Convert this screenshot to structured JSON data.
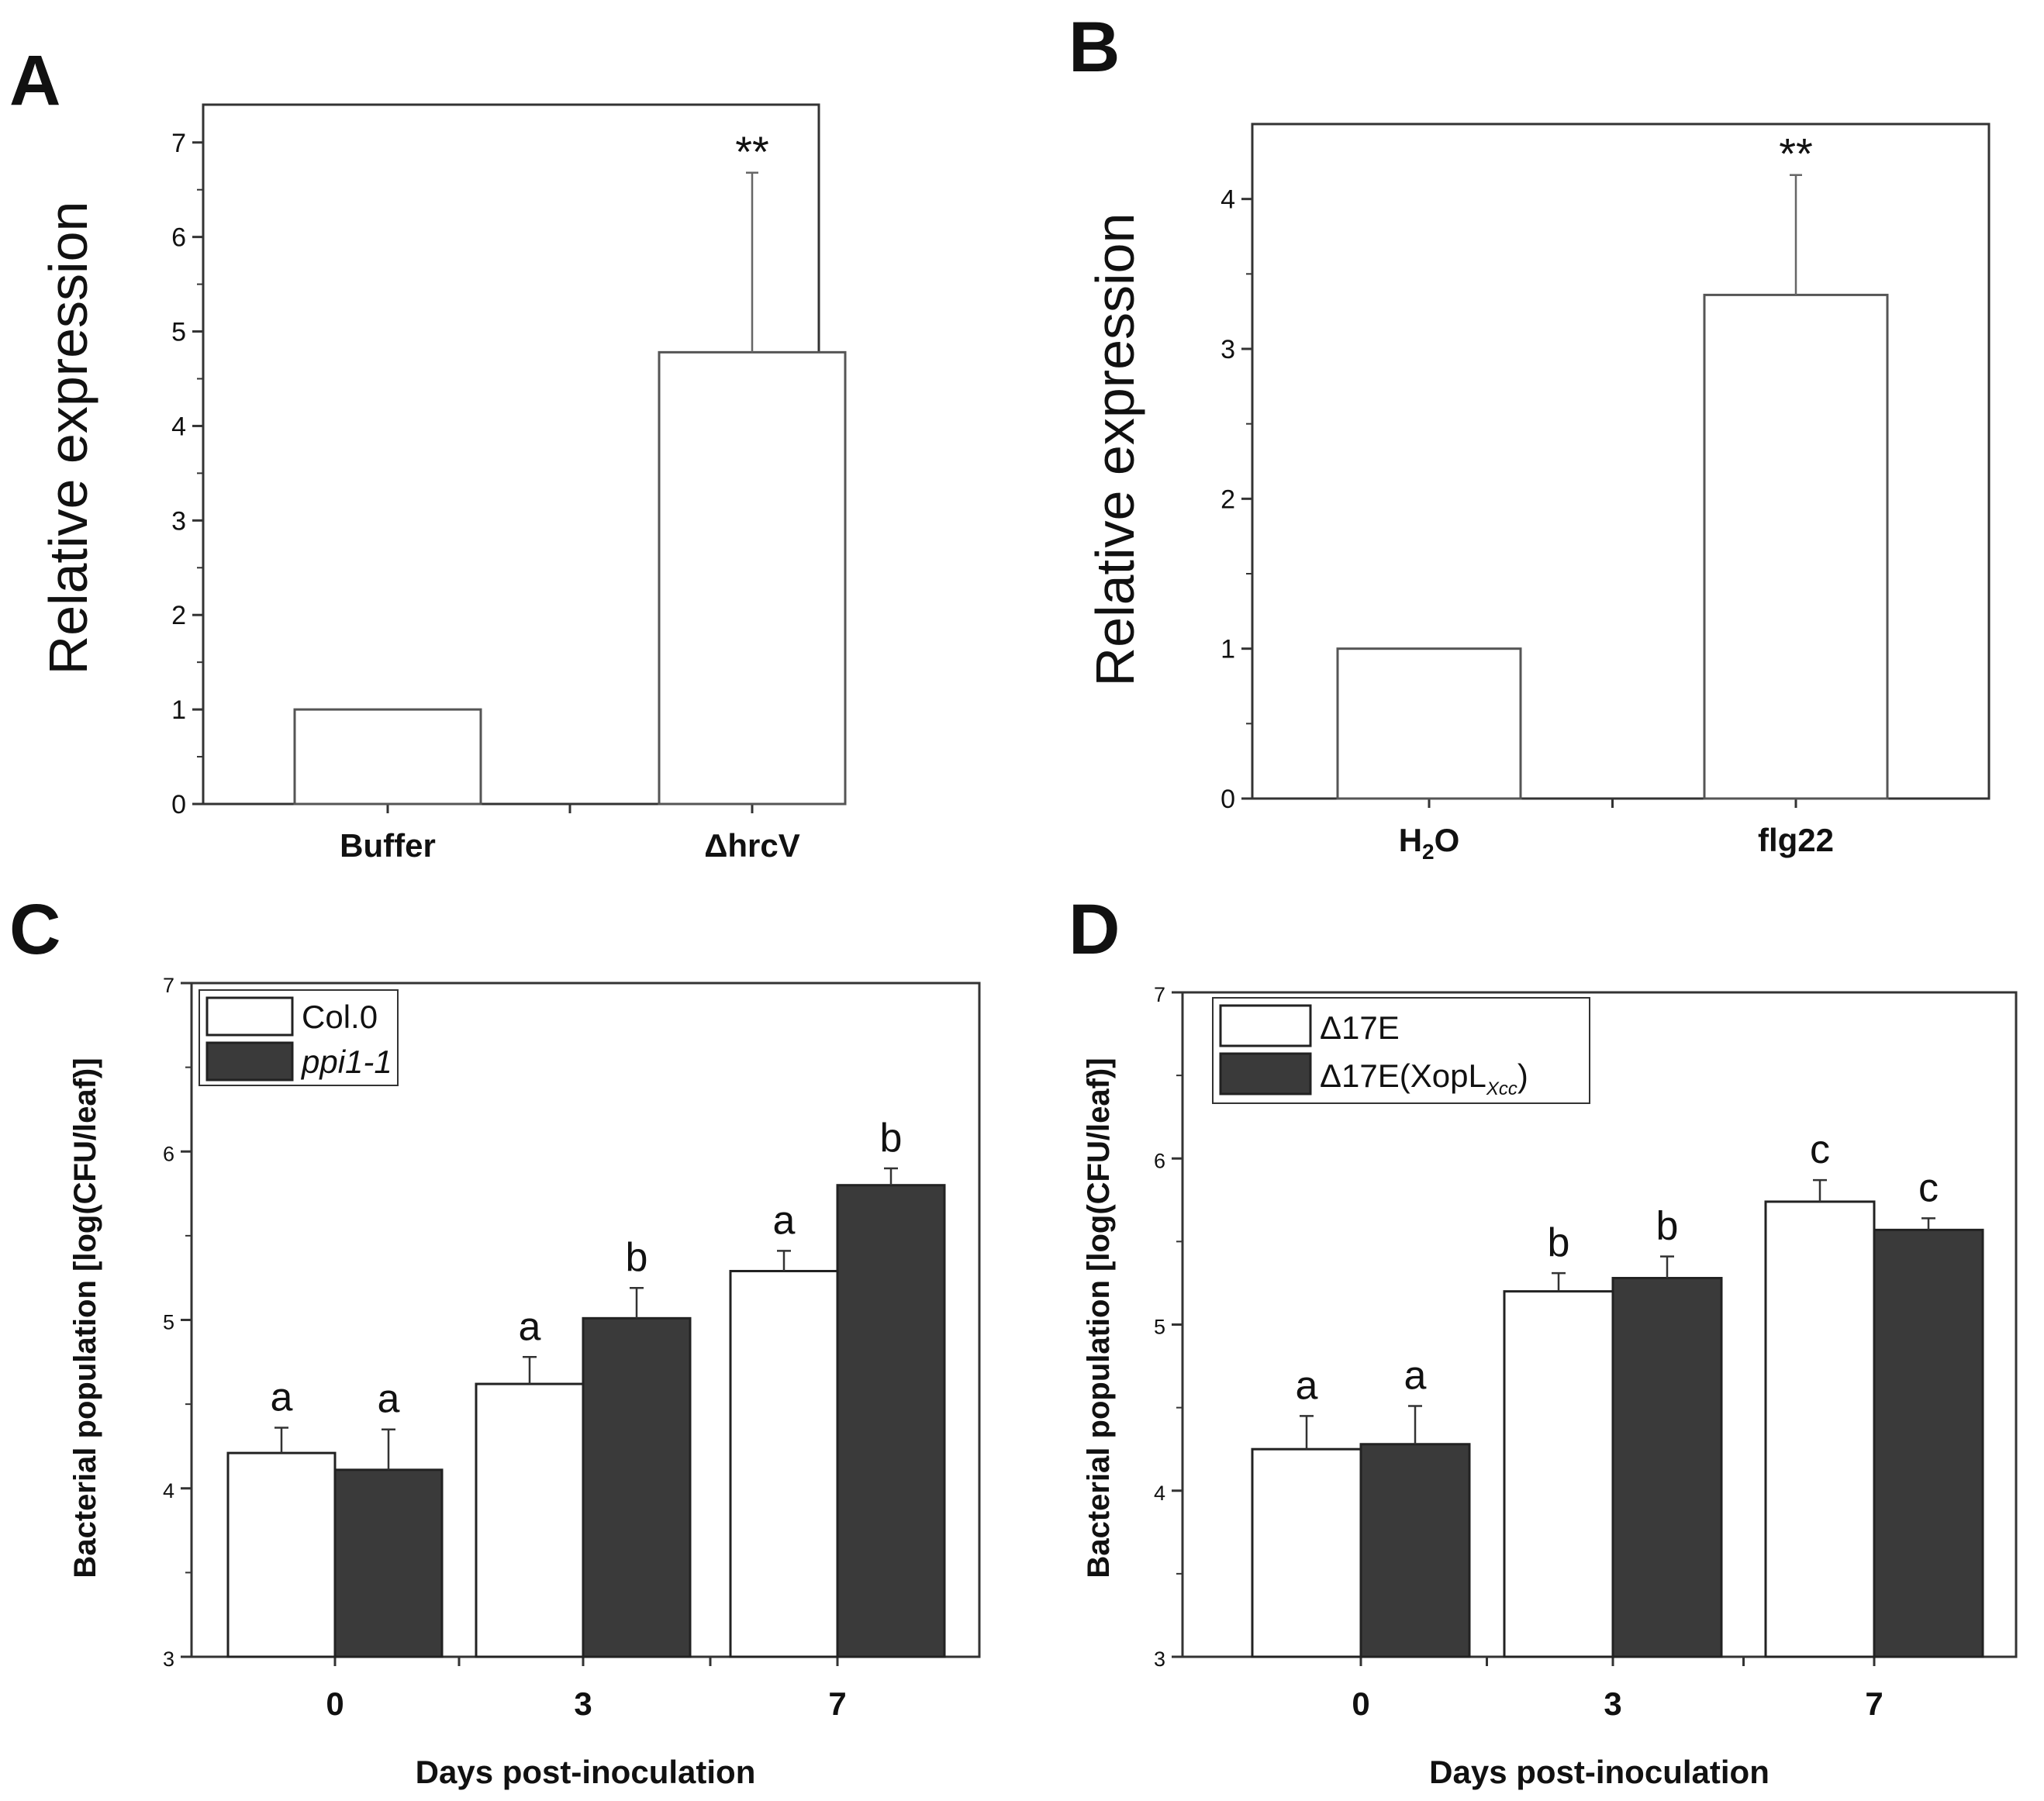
{
  "chart_data": [
    {
      "id": "A",
      "panel_label": "A",
      "type": "bar",
      "categories": [
        "Buffer",
        "ΔhrcV"
      ],
      "values": [
        1.0,
        4.78
      ],
      "errors": [
        0,
        1.9
      ],
      "significance": [
        "",
        "**"
      ],
      "ylabel": "Relative expression",
      "xlabel": "",
      "ylim": [
        0,
        7.4
      ],
      "yticks": [
        0,
        1,
        2,
        3,
        4,
        5,
        6,
        7
      ],
      "bar_color": "#ffffff",
      "grid": false
    },
    {
      "id": "B",
      "panel_label": "B",
      "type": "bar",
      "categories": [
        "H",
        "flg22"
      ],
      "category_subscripts": [
        "2",
        ""
      ],
      "category_suffixes": [
        "O",
        ""
      ],
      "values": [
        1.0,
        3.36
      ],
      "errors": [
        0,
        0.8
      ],
      "significance": [
        "",
        "**"
      ],
      "ylabel": "Relative expression",
      "xlabel": "",
      "ylim": [
        0,
        4.5
      ],
      "yticks": [
        0,
        1,
        2,
        3,
        4
      ],
      "bar_color": "#ffffff",
      "grid": false
    },
    {
      "id": "C",
      "panel_label": "C",
      "type": "bar",
      "categories": [
        "0",
        "3",
        "7"
      ],
      "series": [
        {
          "name": "Col.0",
          "values": [
            4.21,
            4.62,
            5.29
          ],
          "errors": [
            0.15,
            0.16,
            0.12
          ],
          "letters": [
            "a",
            "a",
            "a"
          ],
          "color": "#ffffff"
        },
        {
          "name": "ppi1-1",
          "values": [
            4.11,
            5.01,
            5.8
          ],
          "errors": [
            0.24,
            0.18,
            0.1
          ],
          "letters": [
            "a",
            "b",
            "b"
          ],
          "color": "#3a3a3a"
        }
      ],
      "legend_italic": [
        false,
        true
      ],
      "ylabel": "Bacterial population [log(CFU/leaf)]",
      "xlabel": "Days post-inoculation",
      "ylim": [
        3,
        7
      ],
      "yticks": [
        3,
        4,
        5,
        6,
        7
      ],
      "legend_position": "top-left",
      "grid": false
    },
    {
      "id": "D",
      "panel_label": "D",
      "type": "bar",
      "categories": [
        "0",
        "3",
        "7"
      ],
      "series": [
        {
          "name": "Δ17E",
          "values": [
            4.25,
            5.2,
            5.74
          ],
          "errors": [
            0.2,
            0.11,
            0.13
          ],
          "letters": [
            "a",
            "b",
            "c"
          ],
          "color": "#ffffff"
        },
        {
          "name": "Δ17E(XopL",
          "name_subscript": "Xcc",
          "name_suffix": ")",
          "values": [
            4.28,
            5.28,
            5.57
          ],
          "errors": [
            0.23,
            0.13,
            0.07
          ],
          "letters": [
            "a",
            "b",
            "c"
          ],
          "color": "#3a3a3a"
        }
      ],
      "ylabel": "Bacterial population [log(CFU/leaf)]",
      "xlabel": "Days post-inoculation",
      "ylim": [
        3,
        7
      ],
      "yticks": [
        3,
        4,
        5,
        6,
        7
      ],
      "legend_position": "top-left",
      "grid": false
    }
  ]
}
